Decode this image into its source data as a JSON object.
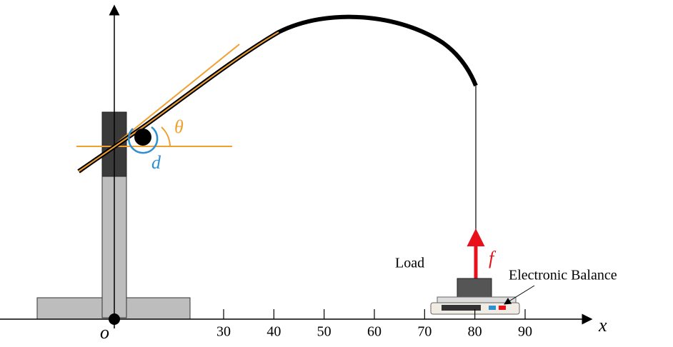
{
  "labels": {
    "theta": "θ",
    "d": "d",
    "load": "Load",
    "force": "f",
    "balance": "Electronic Balance",
    "origin": "o",
    "axis_name": "x"
  },
  "axis": {
    "ticks": [
      30,
      40,
      50,
      60,
      70,
      80,
      90
    ]
  }
}
